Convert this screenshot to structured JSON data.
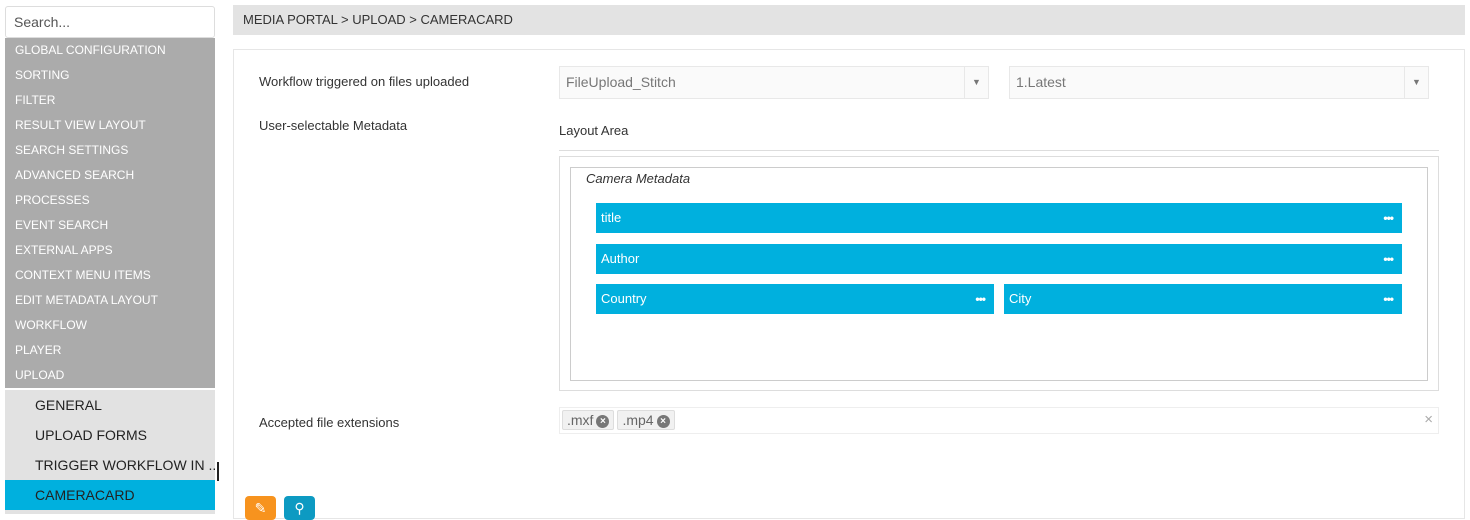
{
  "sidebar": {
    "search_placeholder": "Search...",
    "items": [
      "GLOBAL CONFIGURATION",
      "SORTING",
      "FILTER",
      "RESULT VIEW LAYOUT",
      "SEARCH SETTINGS",
      "ADVANCED SEARCH",
      "PROCESSES",
      "EVENT SEARCH",
      "EXTERNAL APPS",
      "CONTEXT MENU ITEMS",
      "EDIT METADATA LAYOUT",
      "WORKFLOW",
      "PLAYER",
      "UPLOAD"
    ],
    "subitems": [
      "GENERAL",
      "UPLOAD FORMS",
      "TRIGGER WORKFLOW IN ...",
      "CAMERACARD"
    ],
    "active": "CAMERACARD"
  },
  "breadcrumb": "MEDIA PORTAL > UPLOAD > CAMERACARD",
  "form": {
    "workflow_label": "Workflow triggered on files uploaded",
    "workflow_value": "FileUpload_Stitch",
    "version_value": "1.Latest",
    "metadata_label": "User-selectable Metadata",
    "layout_area_label": "Layout Area",
    "group_title": "Camera Metadata",
    "fields": [
      "title",
      "Author",
      "Country",
      "City"
    ],
    "extensions_label": "Accepted file extensions",
    "extensions": [
      ".mxf",
      ".mp4"
    ]
  },
  "buttons": {
    "edit": "edit-icon",
    "view": "binoculars-icon"
  },
  "colors": {
    "accent": "#00b0de",
    "edit": "#f7931e",
    "view": "#0d9ac2"
  }
}
